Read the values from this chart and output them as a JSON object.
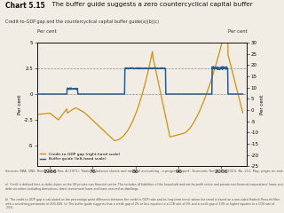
{
  "title_bold": "Chart 5.15",
  "title_rest": "  The buffer guide suggests a zero countercyclical capital buffer",
  "subtitle": "Credit-to-GDP gap and the countercyclical capital buffer guide(a)(b)(c)",
  "ylabel_left": "Per cent",
  "ylabel_right": "Per cent",
  "left_ylim": [
    -7,
    5
  ],
  "right_ylim": [
    -25,
    30
  ],
  "left_yticks": [
    -5,
    -2.5,
    0,
    2.5,
    5
  ],
  "right_yticks": [
    -25,
    -20,
    -15,
    -10,
    -5,
    0,
    5,
    10,
    15,
    20,
    25,
    30
  ],
  "xticks": [
    1966,
    1976,
    1986,
    1996,
    2006
  ],
  "xticklabels": [
    "1966",
    "76",
    "86",
    "96",
    "2006"
  ],
  "xlim": [
    1963,
    2012
  ],
  "background_color": "#f2ede4",
  "plot_bg": "#ffffff",
  "gdp_color": "#d4900a",
  "buffer_color": "#2b5c8a",
  "legend_labels": [
    "Credit-to-GDP gap (right-hand scale)",
    "Buffer guide (left-hand scale)"
  ],
  "source_text": "Sources: BBA, ONS, Revell, J and Roe, A (1971), 'National balance sheets and national accounting - a progress report', Economic Trends, No. 230.5, No. 211, May, pages on-end and Bank calculations.",
  "note_a": "a)  Credit is defined here as debt claims on the UK private non-financial sector. This includes all liabilities of the household and not-for-profit sector and private non-financial corporations' loans and debt securities excluding derivatives, direct investment loans and loans secured on dwellings.",
  "note_b": "b)  The credit-to-GDP gap is calculated as the percentage point difference between the credit to GDP ratio and its long-term trend, where the trend is based on a one-sided Hodrick-Prescott filter with a smoothing parameter of 400,000. (c) The buffer guide suggests that a credit gap of 2% or less equates to a CCB rate of 0% and a credit gap of 10% or higher equates to a CCB rate of 2.5%."
}
